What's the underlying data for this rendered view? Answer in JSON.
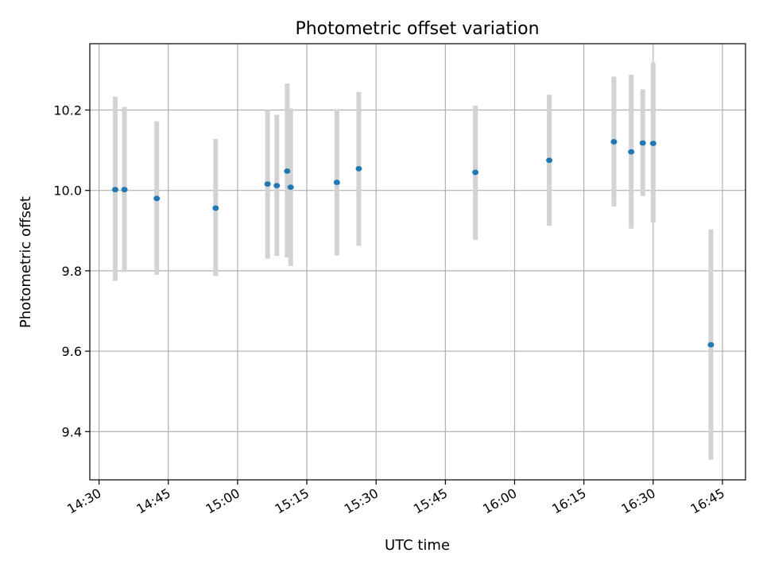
{
  "chart_data": {
    "type": "scatter",
    "title": "Photometric offset variation",
    "xlabel": "UTC time",
    "ylabel": "Photometric offset",
    "x_axis_type": "time",
    "xlim": [
      "14:28",
      "16:50"
    ],
    "ylim": [
      9.28,
      10.365
    ],
    "grid": true,
    "x_ticks": [
      "14:30",
      "14:45",
      "15:00",
      "15:15",
      "15:30",
      "15:45",
      "16:00",
      "16:15",
      "16:30",
      "16:45"
    ],
    "y_ticks": [
      9.4,
      9.6,
      9.8,
      10.0,
      10.2
    ],
    "y_tick_labels": [
      "9.4",
      "9.6",
      "9.8",
      "10.0",
      "10.2"
    ],
    "marker_color": "#1f77b4",
    "errorbar_color": "#d3d3d3",
    "points": [
      {
        "t": "14:33:30",
        "y": 10.002,
        "y_low": 9.775,
        "y_high": 10.233
      },
      {
        "t": "14:35:30",
        "y": 10.002,
        "y_low": 9.797,
        "y_high": 10.208
      },
      {
        "t": "14:42:30",
        "y": 9.98,
        "y_low": 9.79,
        "y_high": 10.172
      },
      {
        "t": "14:55:15",
        "y": 9.956,
        "y_low": 9.787,
        "y_high": 10.128
      },
      {
        "t": "15:06:30",
        "y": 10.016,
        "y_low": 9.83,
        "y_high": 10.2
      },
      {
        "t": "15:08:30",
        "y": 10.012,
        "y_low": 9.837,
        "y_high": 10.188
      },
      {
        "t": "15:10:45",
        "y": 10.048,
        "y_low": 9.833,
        "y_high": 10.266
      },
      {
        "t": "15:11:30",
        "y": 10.008,
        "y_low": 9.812,
        "y_high": 10.204
      },
      {
        "t": "15:21:30",
        "y": 10.02,
        "y_low": 9.838,
        "y_high": 10.202
      },
      {
        "t": "15:26:15",
        "y": 10.054,
        "y_low": 9.862,
        "y_high": 10.245
      },
      {
        "t": "15:51:30",
        "y": 10.045,
        "y_low": 9.877,
        "y_high": 10.211
      },
      {
        "t": "16:07:30",
        "y": 10.075,
        "y_low": 9.912,
        "y_high": 10.238
      },
      {
        "t": "16:21:30",
        "y": 10.121,
        "y_low": 9.96,
        "y_high": 10.283
      },
      {
        "t": "16:25:15",
        "y": 10.096,
        "y_low": 9.905,
        "y_high": 10.288
      },
      {
        "t": "16:27:45",
        "y": 10.118,
        "y_low": 9.986,
        "y_high": 10.251
      },
      {
        "t": "16:30:00",
        "y": 10.117,
        "y_low": 9.92,
        "y_high": 10.318
      },
      {
        "t": "16:42:30",
        "y": 9.616,
        "y_low": 9.33,
        "y_high": 9.903
      }
    ]
  }
}
